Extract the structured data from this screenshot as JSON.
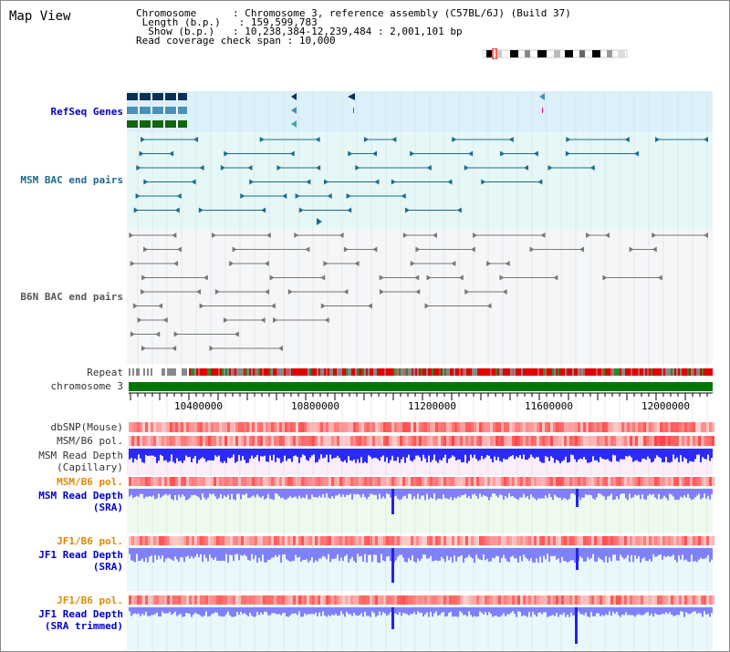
{
  "title": "Map View",
  "info": {
    "chromosome_key": "Chromosome",
    "chromosome_val": "Chromosome 3, reference assembly (C57BL/6J) (Build 37)",
    "length_key": "Length (b.p.)",
    "length_val": "159,599,783",
    "show_key": "Show (b.p.)",
    "show_val": "10,238,384-12,239,484 : 2,001,101 bp",
    "coverage_key": "Read coverage check span",
    "coverage_val": "10,000"
  },
  "tracks": {
    "refseq": "RefSeq Genes",
    "msm_bac": "MSM BAC end pairs",
    "b6n_bac": "B6N BAC end pairs",
    "repeat": "Repeat",
    "chromosome": "chromosome 3",
    "dbsnp": "dbSNP(Mouse)",
    "msm_b6_pol": "MSM/B6 pol.",
    "msm_depth_cap_1": "MSM Read Depth",
    "msm_depth_cap_2": "(Capillary)",
    "msm_b6_pol_2": "MSM/B6 pol.",
    "msm_depth_sra_1": "MSM Read Depth",
    "msm_depth_sra_2": "(SRA)",
    "jf1_b6_pol": "JF1/B6 pol.",
    "jf1_depth_sra_1": "JF1 Read Depth",
    "jf1_depth_sra_2": "(SRA)",
    "jf1_b6_pol_2": "JF1/B6 pol.",
    "jf1_depth_trim_1": "JF1 Read Depth",
    "jf1_depth_trim_2": "(SRA trimmed)"
  },
  "axis": {
    "ticks": [
      "10400000",
      "10800000",
      "11200000",
      "11600000",
      "12000000"
    ]
  },
  "colors": {
    "refseq_bg": "#dcf0fa",
    "msm_bac_bg": "#e6f7f7",
    "b6n_bac_bg": "#f4f6f8",
    "chromosome_bar": "#007700",
    "track_teal": "#1c6b8a",
    "track_grey": "#777777",
    "depth_blue": "#3333ff",
    "depth_light_blue": "#8080ff",
    "snp_red": "#ff4040"
  }
}
